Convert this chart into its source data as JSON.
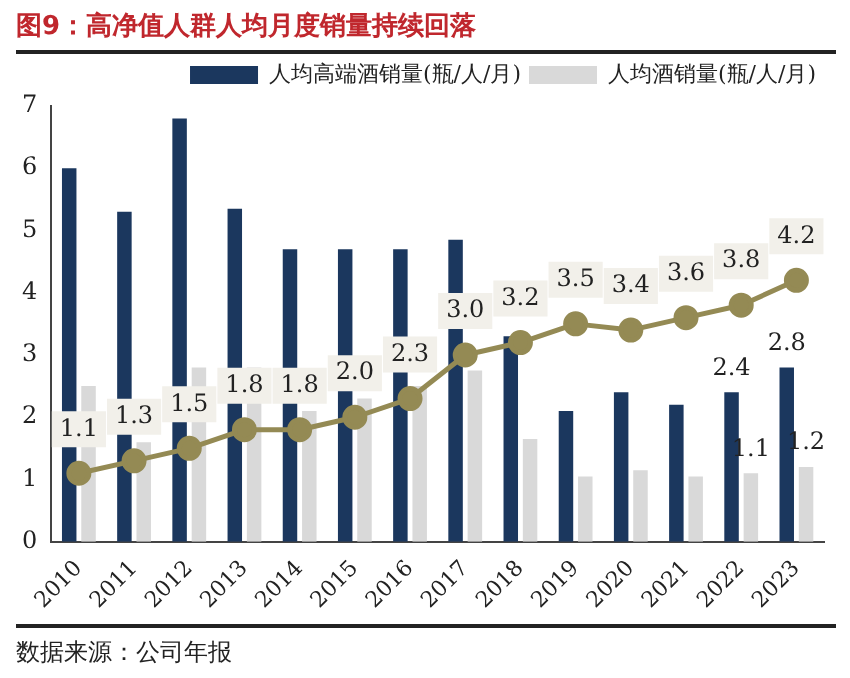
{
  "chart_data": {
    "type": "bar",
    "title": "图9：高净值人群人均月度销量持续回落",
    "annotations": [
      "数据来源：公司年报"
    ],
    "categories": [
      "2010",
      "2011",
      "2012",
      "2013",
      "2014",
      "2015",
      "2016",
      "2017",
      "2018",
      "2019",
      "2020",
      "2021",
      "2022",
      "2023"
    ],
    "series": [
      {
        "name": "人均高端酒销量(瓶/人/月)",
        "color": "#1b375e",
        "values": [
          6.0,
          5.3,
          6.8,
          5.35,
          4.7,
          4.7,
          4.7,
          4.85,
          3.3,
          2.1,
          2.4,
          2.2,
          2.4,
          2.8
        ],
        "value_labels": [
          null,
          null,
          null,
          null,
          null,
          null,
          null,
          null,
          null,
          null,
          null,
          null,
          "2.4",
          "2.8"
        ]
      },
      {
        "name": "人均酒销量(瓶/人/月)",
        "color": "#d9d9d9",
        "values": [
          2.5,
          1.6,
          2.8,
          2.8,
          2.1,
          2.3,
          2.5,
          2.75,
          1.65,
          1.05,
          1.15,
          1.05,
          1.1,
          1.2
        ],
        "value_labels": [
          null,
          null,
          null,
          null,
          null,
          null,
          null,
          null,
          null,
          null,
          null,
          null,
          "1.1",
          "1.2"
        ]
      },
      {
        "type": "line",
        "color": "#948a54",
        "marker": "circle",
        "values": [
          1.1,
          1.3,
          1.5,
          1.8,
          1.8,
          2.0,
          2.3,
          3.0,
          3.2,
          3.5,
          3.4,
          3.6,
          3.8,
          4.2
        ],
        "value_labels": [
          "1.1",
          "1.3",
          "1.5",
          "1.8",
          "1.8",
          "2.0",
          "2.3",
          "3.0",
          "3.2",
          "3.5",
          "3.4",
          "3.6",
          "3.8",
          "4.2"
        ]
      }
    ],
    "ylim": [
      0,
      7
    ],
    "yticks": [
      0,
      1,
      2,
      3,
      4,
      5,
      6,
      7
    ],
    "grid": false,
    "legend": "top right"
  }
}
